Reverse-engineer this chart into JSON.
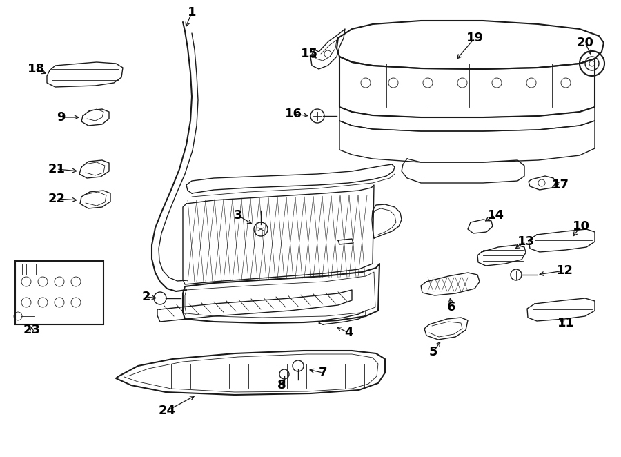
{
  "bg_color": "#ffffff",
  "line_color": "#1a1a1a",
  "text_color": "#000000",
  "fig_width": 9.0,
  "fig_height": 6.62,
  "dpi": 100
}
